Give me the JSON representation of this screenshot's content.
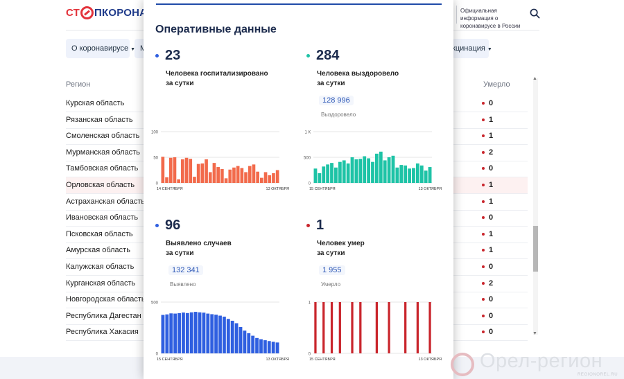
{
  "header": {
    "logo_part1": "СТ",
    "logo_part2": "ПКОРОНАВИ",
    "info": "Официальная информация о коронавирусе в России"
  },
  "nav": {
    "item1": "О коронавирусе",
    "item2_partial": "М",
    "item3_partial": "кцинация"
  },
  "table": {
    "col_region": "Регион",
    "col_died": "Умерло",
    "rows": [
      {
        "region": "Курская область",
        "died": "0"
      },
      {
        "region": "Рязанская область",
        "died": "1"
      },
      {
        "region": "Смоленская область",
        "died": "1"
      },
      {
        "region": "Мурманская область",
        "died": "2"
      },
      {
        "region": "Тамбовская область",
        "died": "0"
      },
      {
        "region": "Орловская область",
        "died": "1"
      },
      {
        "region": "Астраханская область",
        "died": "1"
      },
      {
        "region": "Ивановская область",
        "died": "0"
      },
      {
        "region": "Псковская область",
        "died": "1"
      },
      {
        "region": "Амурская область",
        "died": "1"
      },
      {
        "region": "Калужская область",
        "died": "0"
      },
      {
        "region": "Курганская область",
        "died": "2"
      },
      {
        "region": "Новгородская область",
        "died": "0"
      },
      {
        "region": "Республика Дагестан",
        "died": "0"
      },
      {
        "region": "Республика Хакасия",
        "died": "0"
      }
    ]
  },
  "modal": {
    "title": "Оперативные данные",
    "hospitalized": {
      "value": "23",
      "line1": "Человека госпитализировано",
      "line2": "за сутки"
    },
    "recovered": {
      "value": "284",
      "line1": "Человека выздоровело",
      "line2": "за сутки",
      "total": "128 996",
      "total_label": "Выздоровело"
    },
    "detected": {
      "value": "96",
      "line1": "Выявлено случаев",
      "line2": "за сутки",
      "total": "132 341",
      "total_label": "Выявлено"
    },
    "died": {
      "value": "1",
      "line1": "Человек умер",
      "line2": "за сутки",
      "total": "1 955",
      "total_label": "Умерло"
    }
  },
  "colors": {
    "hospitalized": "#f26a4b",
    "recovered": "#1ec3a6",
    "detected": "#2f5fe0",
    "died": "#c9252c"
  },
  "chart_data": [
    {
      "type": "bar",
      "name": "hospitalized",
      "ylim": [
        0,
        100
      ],
      "y_ticks": [
        "0",
        "50",
        "100"
      ],
      "x_start": "14 СЕНТЯБРЯ",
      "x_end": "13 ОКТЯБРЯ",
      "values": [
        51,
        11,
        49,
        50,
        7,
        46,
        49,
        47,
        12,
        37,
        38,
        46,
        21,
        39,
        31,
        27,
        9,
        26,
        30,
        33,
        29,
        21,
        33,
        36,
        22,
        10,
        21,
        15,
        19,
        25
      ]
    },
    {
      "type": "bar",
      "name": "recovered",
      "ylim": [
        0,
        1000
      ],
      "y_ticks": [
        "0",
        "500",
        "1 К"
      ],
      "x_start": "15 СЕНТЯБРЯ",
      "x_end": "13 ОКТЯБРЯ",
      "values": [
        280,
        190,
        320,
        360,
        390,
        300,
        410,
        440,
        380,
        500,
        460,
        470,
        520,
        480,
        410,
        570,
        610,
        440,
        500,
        530,
        300,
        350,
        340,
        280,
        290,
        380,
        340,
        240,
        310
      ]
    },
    {
      "type": "bar",
      "name": "detected",
      "ylim": [
        0,
        500
      ],
      "y_ticks": [
        "0",
        "500"
      ],
      "x_start": "15 СЕНТЯБРЯ",
      "x_end": "13 ОКТЯБРЯ",
      "values": [
        375,
        380,
        390,
        388,
        392,
        398,
        393,
        400,
        405,
        400,
        397,
        388,
        382,
        377,
        368,
        358,
        336,
        318,
        294,
        257,
        222,
        197,
        172,
        150,
        138,
        128,
        120,
        113,
        106
      ]
    },
    {
      "type": "bar",
      "name": "died",
      "ylim": [
        0,
        1
      ],
      "y_ticks": [
        "0",
        "1"
      ],
      "x_start": "15 СЕНТЯБРЯ",
      "x_end": "13 ОКТЯБРЯ",
      "values": [
        1,
        0,
        1,
        0,
        1,
        0,
        1,
        0,
        0,
        1,
        0,
        1,
        0,
        0,
        0,
        1,
        0,
        0,
        1,
        0,
        0,
        0,
        1,
        0,
        0,
        1,
        0,
        0,
        1
      ]
    }
  ],
  "watermark": {
    "text": "Орел-регион",
    "site": "REGIONOREL.RU"
  }
}
